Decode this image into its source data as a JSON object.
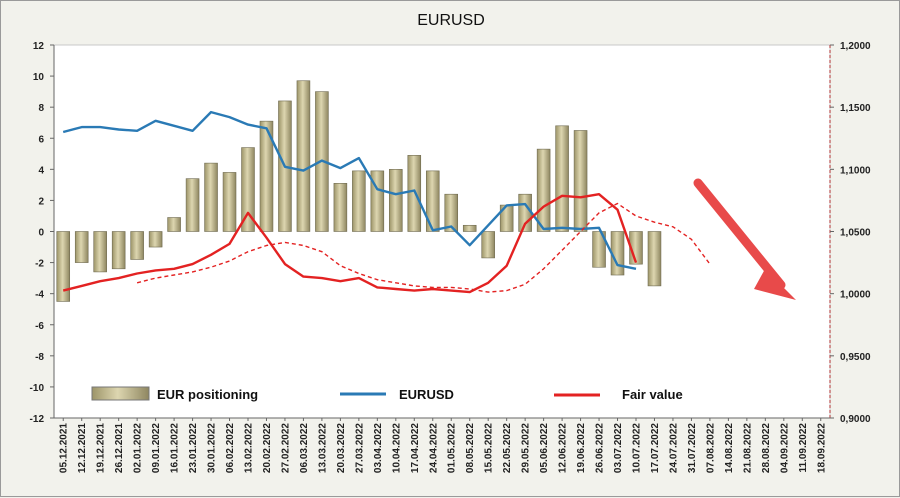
{
  "chart_data": {
    "type": "bar",
    "title": "EURUSD",
    "x_dates": [
      "05.12.2021",
      "12.12.2021",
      "19.12.2021",
      "26.12.2021",
      "02.01.2022",
      "09.01.2022",
      "16.01.2022",
      "23.01.2022",
      "30.01.2022",
      "06.02.2022",
      "13.02.2022",
      "20.02.2022",
      "27.02.2022",
      "06.03.2022",
      "13.03.2022",
      "20.03.2022",
      "27.03.2022",
      "03.04.2022",
      "10.04.2022",
      "17.04.2022",
      "24.04.2022",
      "01.05.2022",
      "08.05.2022",
      "15.05.2022",
      "22.05.2022",
      "29.05.2022",
      "05.06.2022",
      "12.06.2022",
      "19.06.2022",
      "26.06.2022",
      "03.07.2022",
      "10.07.2022",
      "17.07.2022",
      "24.07.2022",
      "31.07.2022",
      "07.08.2022",
      "14.08.2022",
      "21.08.2022",
      "28.08.2022",
      "04.09.2022",
      "11.09.2022",
      "18.09.2022"
    ],
    "y_left_ticks": [
      "12",
      "10",
      "8",
      "6",
      "4",
      "2",
      "0",
      "-2",
      "-4",
      "-6",
      "-8",
      "-10",
      "-12"
    ],
    "y_right_ticks": [
      "1,2000",
      "1,1500",
      "1,1000",
      "1,0500",
      "1,0000",
      "0,9500",
      "0,9000"
    ],
    "y_left_range": [
      -12,
      12
    ],
    "y_right_range": [
      0.9,
      1.2
    ],
    "series": [
      {
        "name": "EUR positioning",
        "kind": "bar",
        "axis": "left",
        "color": "#c8c096",
        "values": [
          -4.5,
          -2.0,
          -2.6,
          -2.4,
          -1.8,
          -1.0,
          0.9,
          3.4,
          4.4,
          3.8,
          5.4,
          7.1,
          8.4,
          9.7,
          9.0,
          3.1,
          3.9,
          3.9,
          4.0,
          4.9,
          3.9,
          2.4,
          0.4,
          -1.7,
          1.7,
          2.4,
          5.3,
          6.8,
          6.5,
          -2.3,
          -2.8,
          -2.1,
          -3.5
        ]
      },
      {
        "name": "EURUSD",
        "kind": "line",
        "axis": "right",
        "color": "#2a7ab5",
        "values": [
          1.13,
          1.134,
          1.134,
          1.132,
          1.131,
          1.139,
          1.135,
          1.131,
          1.146,
          1.142,
          1.136,
          1.133,
          1.102,
          1.099,
          1.107,
          1.101,
          1.109,
          1.084,
          1.08,
          1.083,
          1.051,
          1.054,
          1.039,
          1.055,
          1.071,
          1.072,
          1.052,
          1.053,
          1.052,
          1.053,
          1.023,
          1.02
        ]
      },
      {
        "name": "Fair value",
        "kind": "line",
        "axis": "left",
        "color": "#e32222",
        "values": [
          -3.8,
          -3.5,
          -3.2,
          -3.0,
          -2.7,
          -2.5,
          -2.4,
          -2.1,
          -1.5,
          -0.8,
          1.2,
          -0.4,
          -2.1,
          -2.9,
          -3.0,
          -3.2,
          -3.0,
          -3.6,
          -3.7,
          -3.8,
          -3.7,
          -3.8,
          -3.9,
          -3.3,
          -2.2,
          0.5,
          1.6,
          2.3,
          2.2,
          2.4,
          1.4,
          -2.0
        ]
      },
      {
        "name": "",
        "kind": "line-dashed",
        "axis": "left",
        "color": "#e32222",
        "start_index": 4,
        "values": [
          -3.3,
          -3.0,
          -2.8,
          -2.6,
          -2.3,
          -1.9,
          -1.3,
          -0.9,
          -0.7,
          -0.9,
          -1.3,
          -2.2,
          -2.7,
          -3.1,
          -3.3,
          -3.5,
          -3.6,
          -3.6,
          -3.7,
          -3.9,
          -3.8,
          -3.4,
          -2.4,
          -1.2,
          0.0,
          1.2,
          1.8,
          1.0,
          0.6,
          0.3,
          -0.5,
          -2.1
        ]
      }
    ],
    "legend": [
      "EUR positioning",
      "EURUSD",
      "Fair value"
    ],
    "legend_position": "bottom-inside",
    "annotation": "red-arrow-down-right",
    "grid": false
  }
}
